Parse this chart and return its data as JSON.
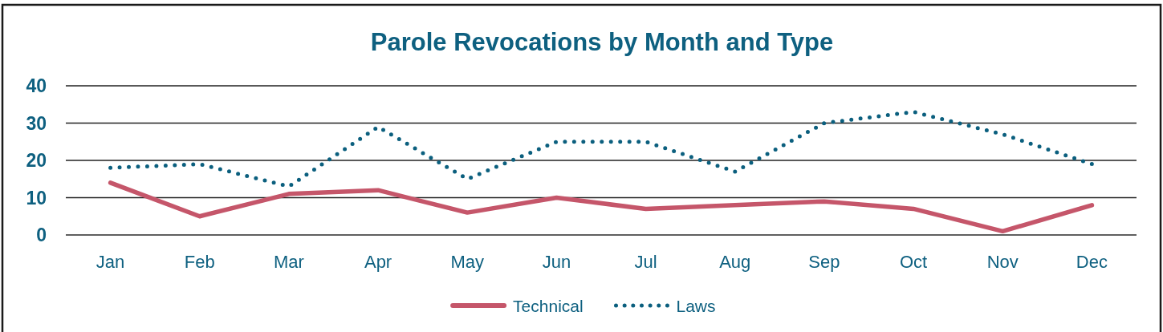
{
  "chart_data": {
    "type": "line",
    "title": "Parole Revocations by Month and Type",
    "categories": [
      "Jan",
      "Feb",
      "Mar",
      "Apr",
      "May",
      "Jun",
      "Jul",
      "Aug",
      "Sep",
      "Oct",
      "Nov",
      "Dec"
    ],
    "series": [
      {
        "name": "Technical",
        "color": "#c5566a",
        "line_style": "solid",
        "values": [
          14,
          5,
          11,
          12,
          6,
          10,
          7,
          8,
          9,
          7,
          1,
          8
        ]
      },
      {
        "name": "Laws",
        "color": "#0b5f7e",
        "line_style": "dotted",
        "values": [
          18,
          19,
          13,
          29,
          15,
          25,
          25,
          17,
          30,
          33,
          27,
          19
        ]
      }
    ],
    "ylim": [
      0,
      40
    ],
    "yticks": [
      0,
      10,
      20,
      30,
      40
    ],
    "grid": "y",
    "legend": "bottom",
    "marker": "none"
  }
}
